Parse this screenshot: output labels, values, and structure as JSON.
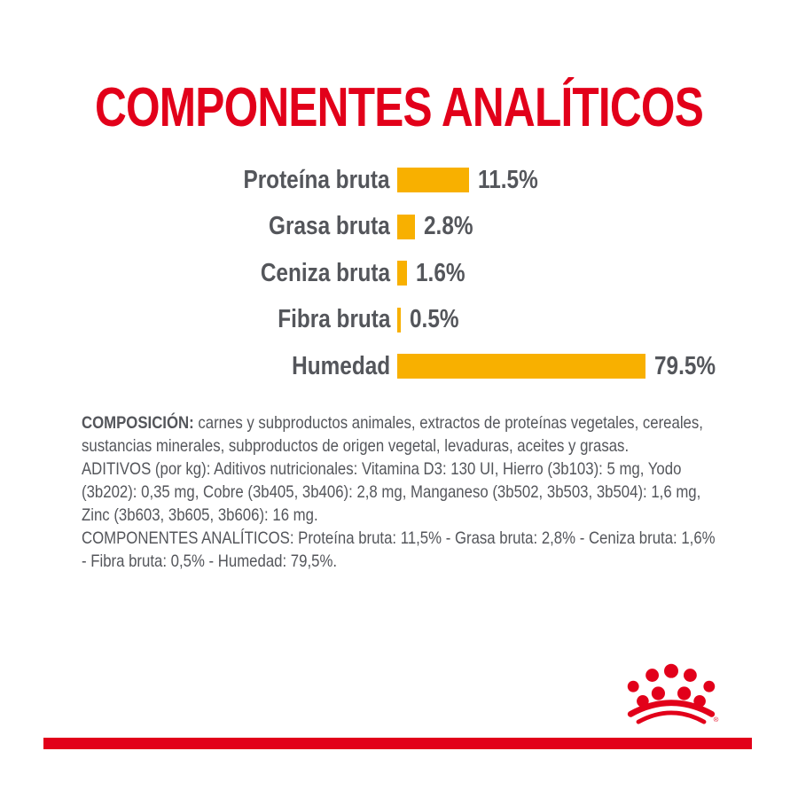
{
  "title": {
    "text": "COMPONENTES ANALÍTICOS",
    "color": "#E2001A"
  },
  "chart_data": {
    "type": "bar",
    "orientation": "horizontal",
    "title": "COMPONENTES ANALÍTICOS",
    "categories": [
      "Proteína bruta",
      "Grasa bruta",
      "Ceniza bruta",
      "Fibra bruta",
      "Humedad"
    ],
    "values": [
      11.5,
      2.8,
      1.6,
      0.5,
      79.5
    ],
    "display_values": [
      "11.5%",
      "2.8%",
      "1.6%",
      "0.5%",
      "79.5%"
    ],
    "unit": "%",
    "bar_color": "#F8B000",
    "label_color": "#54565B",
    "grid": "off",
    "legend": "none",
    "xlim": [
      0,
      80
    ],
    "note": "bar lengths not to a single linear scale; longest bar truncated"
  },
  "composition": {
    "line1_bold": "COMPOSICIÓN:",
    "line1_rest": " carnes y subproductos animales, extractos de proteínas vegetales, cereales,",
    "line2": "sustancias minerales, subproductos de origen vegetal, levaduras, aceites y grasas.",
    "line3": "ADITIVOS (por kg): Aditivos nutricionales: Vitamina D3: 130 UI, Hierro (3b103): 5 mg, Yodo",
    "line4": "(3b202): 0,35 mg, Cobre (3b405, 3b406): 2,8 mg, Manganeso (3b502, 3b503, 3b504): 1,6 mg,",
    "line5": "Zinc (3b603, 3b605, 3b606): 16 mg.",
    "line6": "COMPONENTES ANALÍTICOS: Proteína bruta: 11,5% - Grasa bruta: 2,8% - Ceniza bruta: 1,6%",
    "line7": "- Fibra bruta: 0,5% - Humedad: 79,5%."
  },
  "branding": {
    "logo": "royal-canin-crown",
    "logo_color": "#E2001A",
    "registered_mark": "®"
  },
  "footer": {
    "bar_color": "#E2001A"
  }
}
